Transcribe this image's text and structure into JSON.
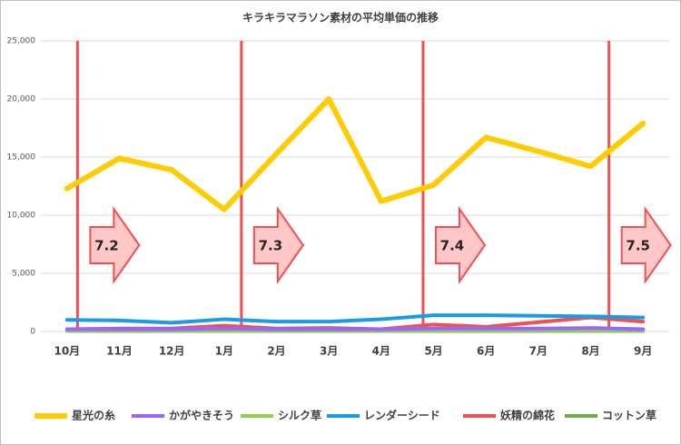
{
  "chart_data": {
    "type": "line",
    "title": "キラキラマラソン素材の平均単価の推移",
    "categories": [
      "10月",
      "11月",
      "12月",
      "1月",
      "2月",
      "3月",
      "4月",
      "5月",
      "6月",
      "7月",
      "8月",
      "9月"
    ],
    "series": [
      {
        "name": "星光の糸",
        "color": "#ffcc00",
        "values": [
          12300,
          14900,
          13900,
          10500,
          15300,
          20000,
          11200,
          12600,
          16700,
          15500,
          14200,
          17900
        ]
      },
      {
        "name": "かがやきそう",
        "color": "#9966ff",
        "values": [
          200,
          200,
          200,
          250,
          200,
          200,
          200,
          250,
          250,
          250,
          300,
          200
        ]
      },
      {
        "name": "シルク草",
        "color": "#92d050",
        "values": [
          100,
          100,
          100,
          100,
          100,
          100,
          100,
          100,
          100,
          100,
          100,
          100
        ]
      },
      {
        "name": "レンダーシード",
        "color": "#1a9be8",
        "values": [
          1000,
          950,
          750,
          1050,
          850,
          850,
          1050,
          1400,
          1400,
          1350,
          1300,
          1200
        ]
      },
      {
        "name": "妖精の綿花",
        "color": "#f05050",
        "values": [
          200,
          250,
          250,
          500,
          250,
          300,
          200,
          600,
          400,
          800,
          1200,
          850
        ]
      },
      {
        "name": "コットン草",
        "color": "#70ad47",
        "values": [
          50,
          50,
          50,
          50,
          50,
          50,
          50,
          50,
          50,
          50,
          50,
          50
        ]
      }
    ],
    "ylim": [
      0,
      25000
    ],
    "yticks": [
      0,
      {
        "value": 5000,
        "label": "5,000"
      },
      {
        "value": 10000,
        "label": "10,000"
      },
      {
        "value": 15000,
        "label": "15,000"
      },
      {
        "value": 20000,
        "label": "20,000"
      },
      {
        "value": 25000,
        "label": "25,000"
      }
    ],
    "grid": true,
    "annotations": [
      "7.2",
      "7.3",
      "7.4",
      "7.5"
    ]
  }
}
